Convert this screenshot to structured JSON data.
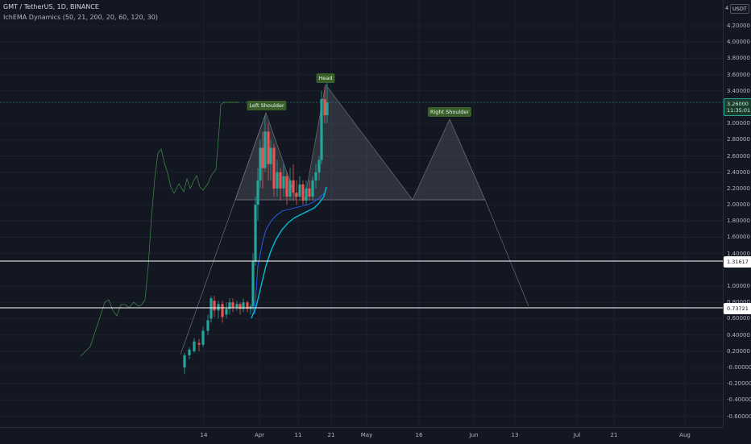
{
  "header": {
    "symbol_line": "GMT / TetherUS, 1D, BINANCE",
    "indicator_line": "IchEMA Dynamics (50, 21, 200, 20, 60, 120, 30)"
  },
  "price_axis": {
    "currency": "USDT",
    "currency_num": "4",
    "ticks": [
      "4.20000",
      "4.00000",
      "3.80000",
      "3.60000",
      "3.40000",
      "3.00000",
      "2.80000",
      "2.60000",
      "2.40000",
      "2.20000",
      "2.00000",
      "1.80000",
      "1.60000",
      "1.40000",
      "1.00000",
      "0.80000",
      "0.60000",
      "0.40000",
      "0.20000",
      "-0.00000",
      "-0.20000",
      "-0.40000",
      "-0.60000"
    ],
    "current_price": "3.26000",
    "countdown": "11:35:01",
    "level_1": "1.31617",
    "level_2": "0.73721"
  },
  "time_axis": {
    "ticks": [
      "14",
      "Apr",
      "11",
      "21",
      "May",
      "16",
      "Jun",
      "13",
      "Jul",
      "21",
      "Aug"
    ]
  },
  "pattern_labels": {
    "left_shoulder": "Left Shoulder",
    "head": "Head",
    "right_shoulder": "Right Shoulder"
  },
  "colors": {
    "background": "#131722",
    "up": "#26a69a",
    "down": "#ef5350",
    "ema_fast": "#2962ff",
    "ema_slow": "#00bcd4",
    "green_line": "#4caf50"
  }
}
